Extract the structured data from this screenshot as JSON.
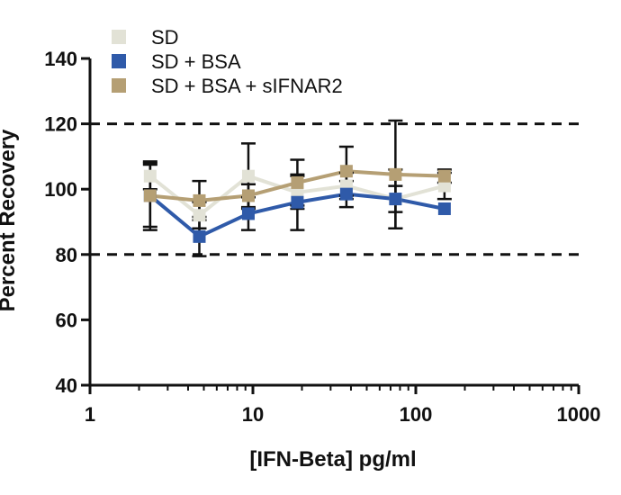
{
  "chart_data": {
    "type": "line",
    "title": "",
    "xlabel": "[IFN-Beta] pg/ml",
    "ylabel": "Percent Recovery",
    "xscale": "log",
    "xlim": [
      1,
      1000
    ],
    "ylim": [
      40,
      140
    ],
    "xticks": [
      1,
      10,
      100,
      1000
    ],
    "xtick_labels": [
      "1",
      "10",
      "100",
      "1000"
    ],
    "yticks": [
      40,
      60,
      80,
      100,
      120,
      140
    ],
    "ytick_labels": [
      "40",
      "60",
      "80",
      "100",
      "120",
      "140"
    ],
    "reference_lines": [
      120,
      80
    ],
    "grid": false,
    "legend_position": "top-left",
    "x": [
      2.34,
      4.69,
      9.38,
      18.75,
      37.5,
      75,
      150
    ],
    "series": [
      {
        "name": "SD",
        "color": "#e2e2d6",
        "values": [
          104,
          92,
          104,
          99,
          101,
          97,
          101
        ],
        "error": [
          4,
          4,
          10,
          5,
          4,
          4,
          4
        ]
      },
      {
        "name": "SD + BSA",
        "color": "#2f5aa9",
        "values": [
          98,
          85.5,
          92.5,
          96,
          98.5,
          97,
          94
        ],
        "error": [
          9.5,
          6,
          5,
          8.5,
          4,
          9,
          0
        ]
      },
      {
        "name": "SD + BSA + sIFNAR2",
        "color": "#b59f74",
        "values": [
          98,
          96.5,
          98,
          102,
          105.5,
          104.5,
          104
        ],
        "error": [
          10.5,
          6,
          3.5,
          7,
          7.5,
          16.5,
          2
        ]
      }
    ]
  }
}
